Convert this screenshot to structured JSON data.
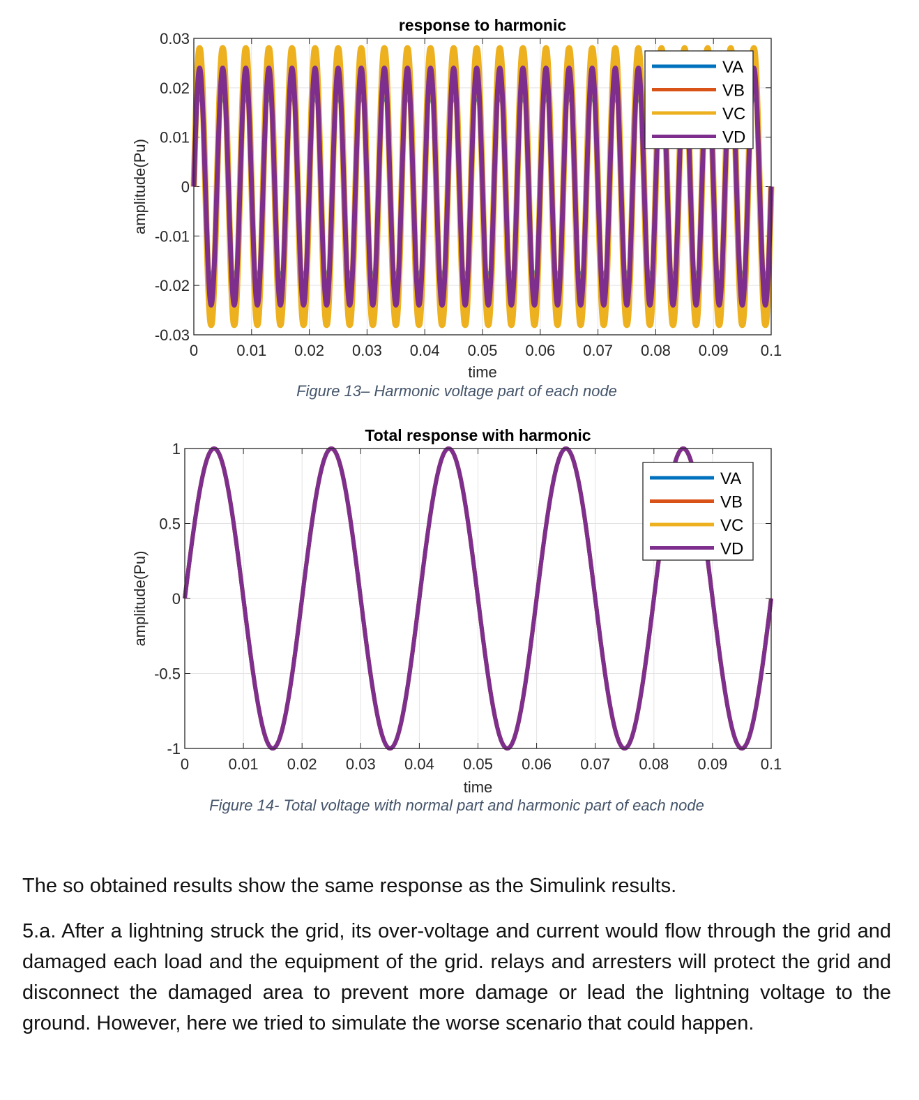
{
  "chart_data": [
    {
      "type": "line",
      "title": "response to harmonic",
      "xlabel": "time",
      "ylabel": "amplitude(Pu)",
      "xlim": [
        0,
        0.1
      ],
      "ylim": [
        -0.03,
        0.03
      ],
      "xticks": [
        "0",
        "0.01",
        "0.02",
        "0.03",
        "0.04",
        "0.05",
        "0.06",
        "0.07",
        "0.08",
        "0.09",
        "0.1"
      ],
      "yticks": [
        "0.03",
        "0.02",
        "0.01",
        "0",
        "-0.01",
        "-0.02",
        "-0.03"
      ],
      "grid": true,
      "legend_position": "top-right",
      "series": [
        {
          "name": "VA",
          "color": "#0072bd",
          "form": "sine",
          "amplitude": 0.018,
          "frequency_hz": 250
        },
        {
          "name": "VB",
          "color": "#d95319",
          "form": "sine",
          "amplitude": 0.024,
          "frequency_hz": 250
        },
        {
          "name": "VC",
          "color": "#edb120",
          "form": "sine",
          "amplitude": 0.028,
          "frequency_hz": 250
        },
        {
          "name": "VD",
          "color": "#7e2f8e",
          "form": "sine",
          "amplitude": 0.024,
          "frequency_hz": 250
        }
      ]
    },
    {
      "type": "line",
      "title": "Total response with harmonic",
      "xlabel": "time",
      "ylabel": "amplitude(Pu)",
      "xlim": [
        0,
        0.1
      ],
      "ylim": [
        -1,
        1
      ],
      "xticks": [
        "0",
        "0.01",
        "0.02",
        "0.03",
        "0.04",
        "0.05",
        "0.06",
        "0.07",
        "0.08",
        "0.09",
        "0.1"
      ],
      "yticks": [
        "1",
        "0.5",
        "0",
        "-0.5",
        "-1"
      ],
      "grid": true,
      "legend_position": "top-right",
      "series": [
        {
          "name": "VA",
          "color": "#0072bd",
          "form": "sine",
          "amplitude": 1,
          "frequency_hz": 50
        },
        {
          "name": "VB",
          "color": "#d95319",
          "form": "sine",
          "amplitude": 1,
          "frequency_hz": 50
        },
        {
          "name": "VC",
          "color": "#edb120",
          "form": "sine",
          "amplitude": 1,
          "frequency_hz": 50
        },
        {
          "name": "VD",
          "color": "#7e2f8e",
          "form": "sine",
          "amplitude": 1,
          "frequency_hz": 50
        }
      ]
    }
  ],
  "captions": {
    "fig13": "Figure 13– Harmonic voltage part of each node",
    "fig14": "Figure 14- Total voltage with normal part and harmonic part of each node"
  },
  "body": {
    "p1": "The so obtained results show the same response as the Simulink results.",
    "p2": "5.a. After a lightning struck the grid, its over-voltage and current would flow through the grid and damaged each load and the equipment of the grid. relays and arresters will protect the grid and disconnect the damaged area to prevent more damage or lead the lightning voltage to the ground. However, here we tried to simulate the worse scenario that could happen."
  }
}
